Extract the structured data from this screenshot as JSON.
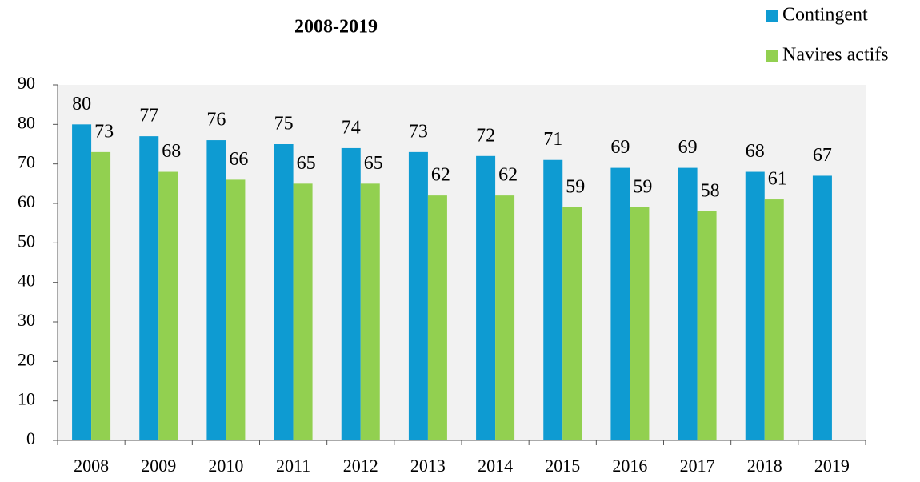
{
  "chart_data": {
    "type": "bar",
    "title": "2008-2019",
    "categories": [
      "2008",
      "2009",
      "2010",
      "2011",
      "2012",
      "2013",
      "2014",
      "2015",
      "2016",
      "2017",
      "2018",
      "2019"
    ],
    "series": [
      {
        "name": "Contingent",
        "color": "#0e9bd2",
        "values": [
          80,
          77,
          76,
          75,
          74,
          73,
          72,
          71,
          69,
          69,
          68,
          67
        ]
      },
      {
        "name": "Navires actifs",
        "color": "#92d050",
        "values": [
          73,
          68,
          66,
          65,
          65,
          62,
          62,
          59,
          59,
          58,
          61,
          null
        ]
      }
    ],
    "ylim": [
      0,
      90
    ],
    "yticks": [
      0,
      10,
      20,
      30,
      40,
      50,
      60,
      70,
      80,
      90
    ],
    "legend": "top-right"
  }
}
